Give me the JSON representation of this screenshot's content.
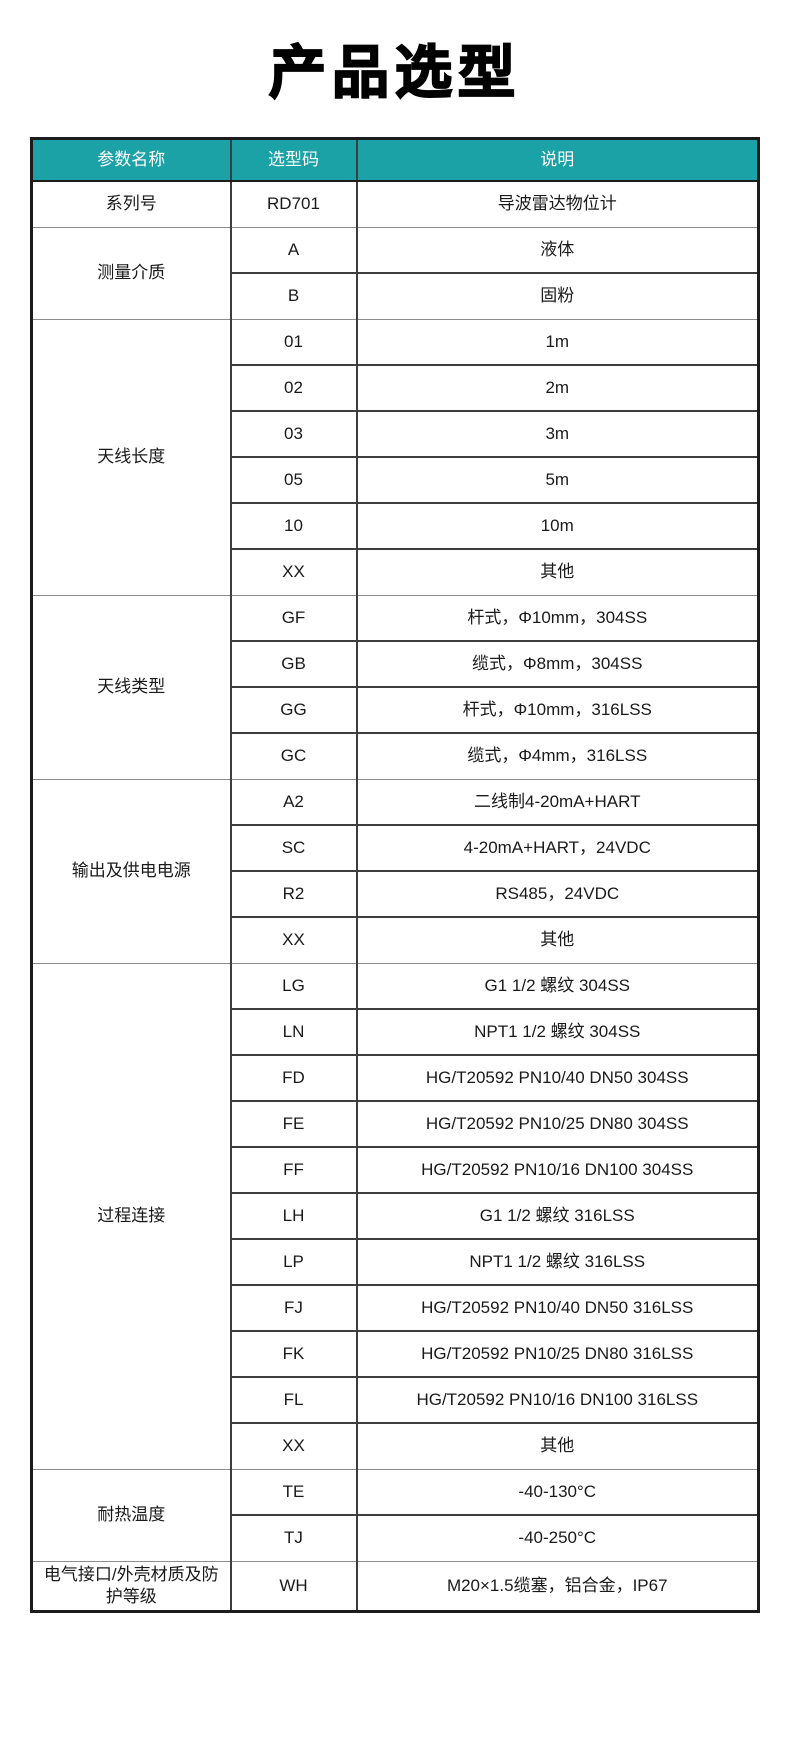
{
  "page_title": "产品选型",
  "colors": {
    "header_bg": "#1aa2a7",
    "header_text": "#ffffff",
    "border_dark": "#3d3d3d",
    "border_outer": "#1c1c1c",
    "border_group": "#8d8d8d",
    "text": "#1a1a1a"
  },
  "table": {
    "headers": [
      "参数名称",
      "选型码",
      "说明"
    ],
    "groups": [
      {
        "name": "系列号",
        "rows": [
          {
            "code": "RD701",
            "desc": "导波雷达物位计"
          }
        ]
      },
      {
        "name": "测量介质",
        "rows": [
          {
            "code": "A",
            "desc": "液体"
          },
          {
            "code": "B",
            "desc": "固粉"
          }
        ]
      },
      {
        "name": "天线长度",
        "rows": [
          {
            "code": "01",
            "desc": "1m"
          },
          {
            "code": "02",
            "desc": "2m"
          },
          {
            "code": "03",
            "desc": "3m"
          },
          {
            "code": "05",
            "desc": "5m"
          },
          {
            "code": "10",
            "desc": "10m"
          },
          {
            "code": "XX",
            "desc": "其他"
          }
        ]
      },
      {
        "name": "天线类型",
        "rows": [
          {
            "code": "GF",
            "desc": "杆式，Φ10mm，304SS"
          },
          {
            "code": "GB",
            "desc": "缆式，Φ8mm，304SS"
          },
          {
            "code": "GG",
            "desc": "杆式，Φ10mm，316LSS"
          },
          {
            "code": "GC",
            "desc": "缆式，Φ4mm，316LSS"
          }
        ]
      },
      {
        "name": "输出及供电电源",
        "rows": [
          {
            "code": "A2",
            "desc": "二线制4-20mA+HART"
          },
          {
            "code": "SC",
            "desc": "4-20mA+HART，24VDC"
          },
          {
            "code": "R2",
            "desc": "RS485，24VDC"
          },
          {
            "code": "XX",
            "desc": "其他"
          }
        ]
      },
      {
        "name": "过程连接",
        "rows": [
          {
            "code": "LG",
            "desc": "G1 1/2 螺纹 304SS"
          },
          {
            "code": "LN",
            "desc": "NPT1 1/2 螺纹 304SS"
          },
          {
            "code": "FD",
            "desc": "HG/T20592 PN10/40 DN50 304SS"
          },
          {
            "code": "FE",
            "desc": "HG/T20592 PN10/25 DN80 304SS"
          },
          {
            "code": "FF",
            "desc": "HG/T20592 PN10/16 DN100 304SS"
          },
          {
            "code": "LH",
            "desc": "G1 1/2 螺纹 316LSS"
          },
          {
            "code": "LP",
            "desc": "NPT1 1/2 螺纹 316LSS"
          },
          {
            "code": "FJ",
            "desc": "HG/T20592 PN10/40 DN50 316LSS"
          },
          {
            "code": "FK",
            "desc": "HG/T20592 PN10/25 DN80 316LSS"
          },
          {
            "code": "FL",
            "desc": "HG/T20592 PN10/16 DN100 316LSS"
          },
          {
            "code": "XX",
            "desc": "其他"
          }
        ]
      },
      {
        "name": "耐热温度",
        "rows": [
          {
            "code": "TE",
            "desc": "-40-130°C"
          },
          {
            "code": "TJ",
            "desc": "-40-250°C"
          }
        ]
      },
      {
        "name": "电气接口/外壳材质及防护等级",
        "rows": [
          {
            "code": "WH",
            "desc": "M20×1.5缆塞，铝合金，IP67"
          }
        ]
      }
    ]
  }
}
